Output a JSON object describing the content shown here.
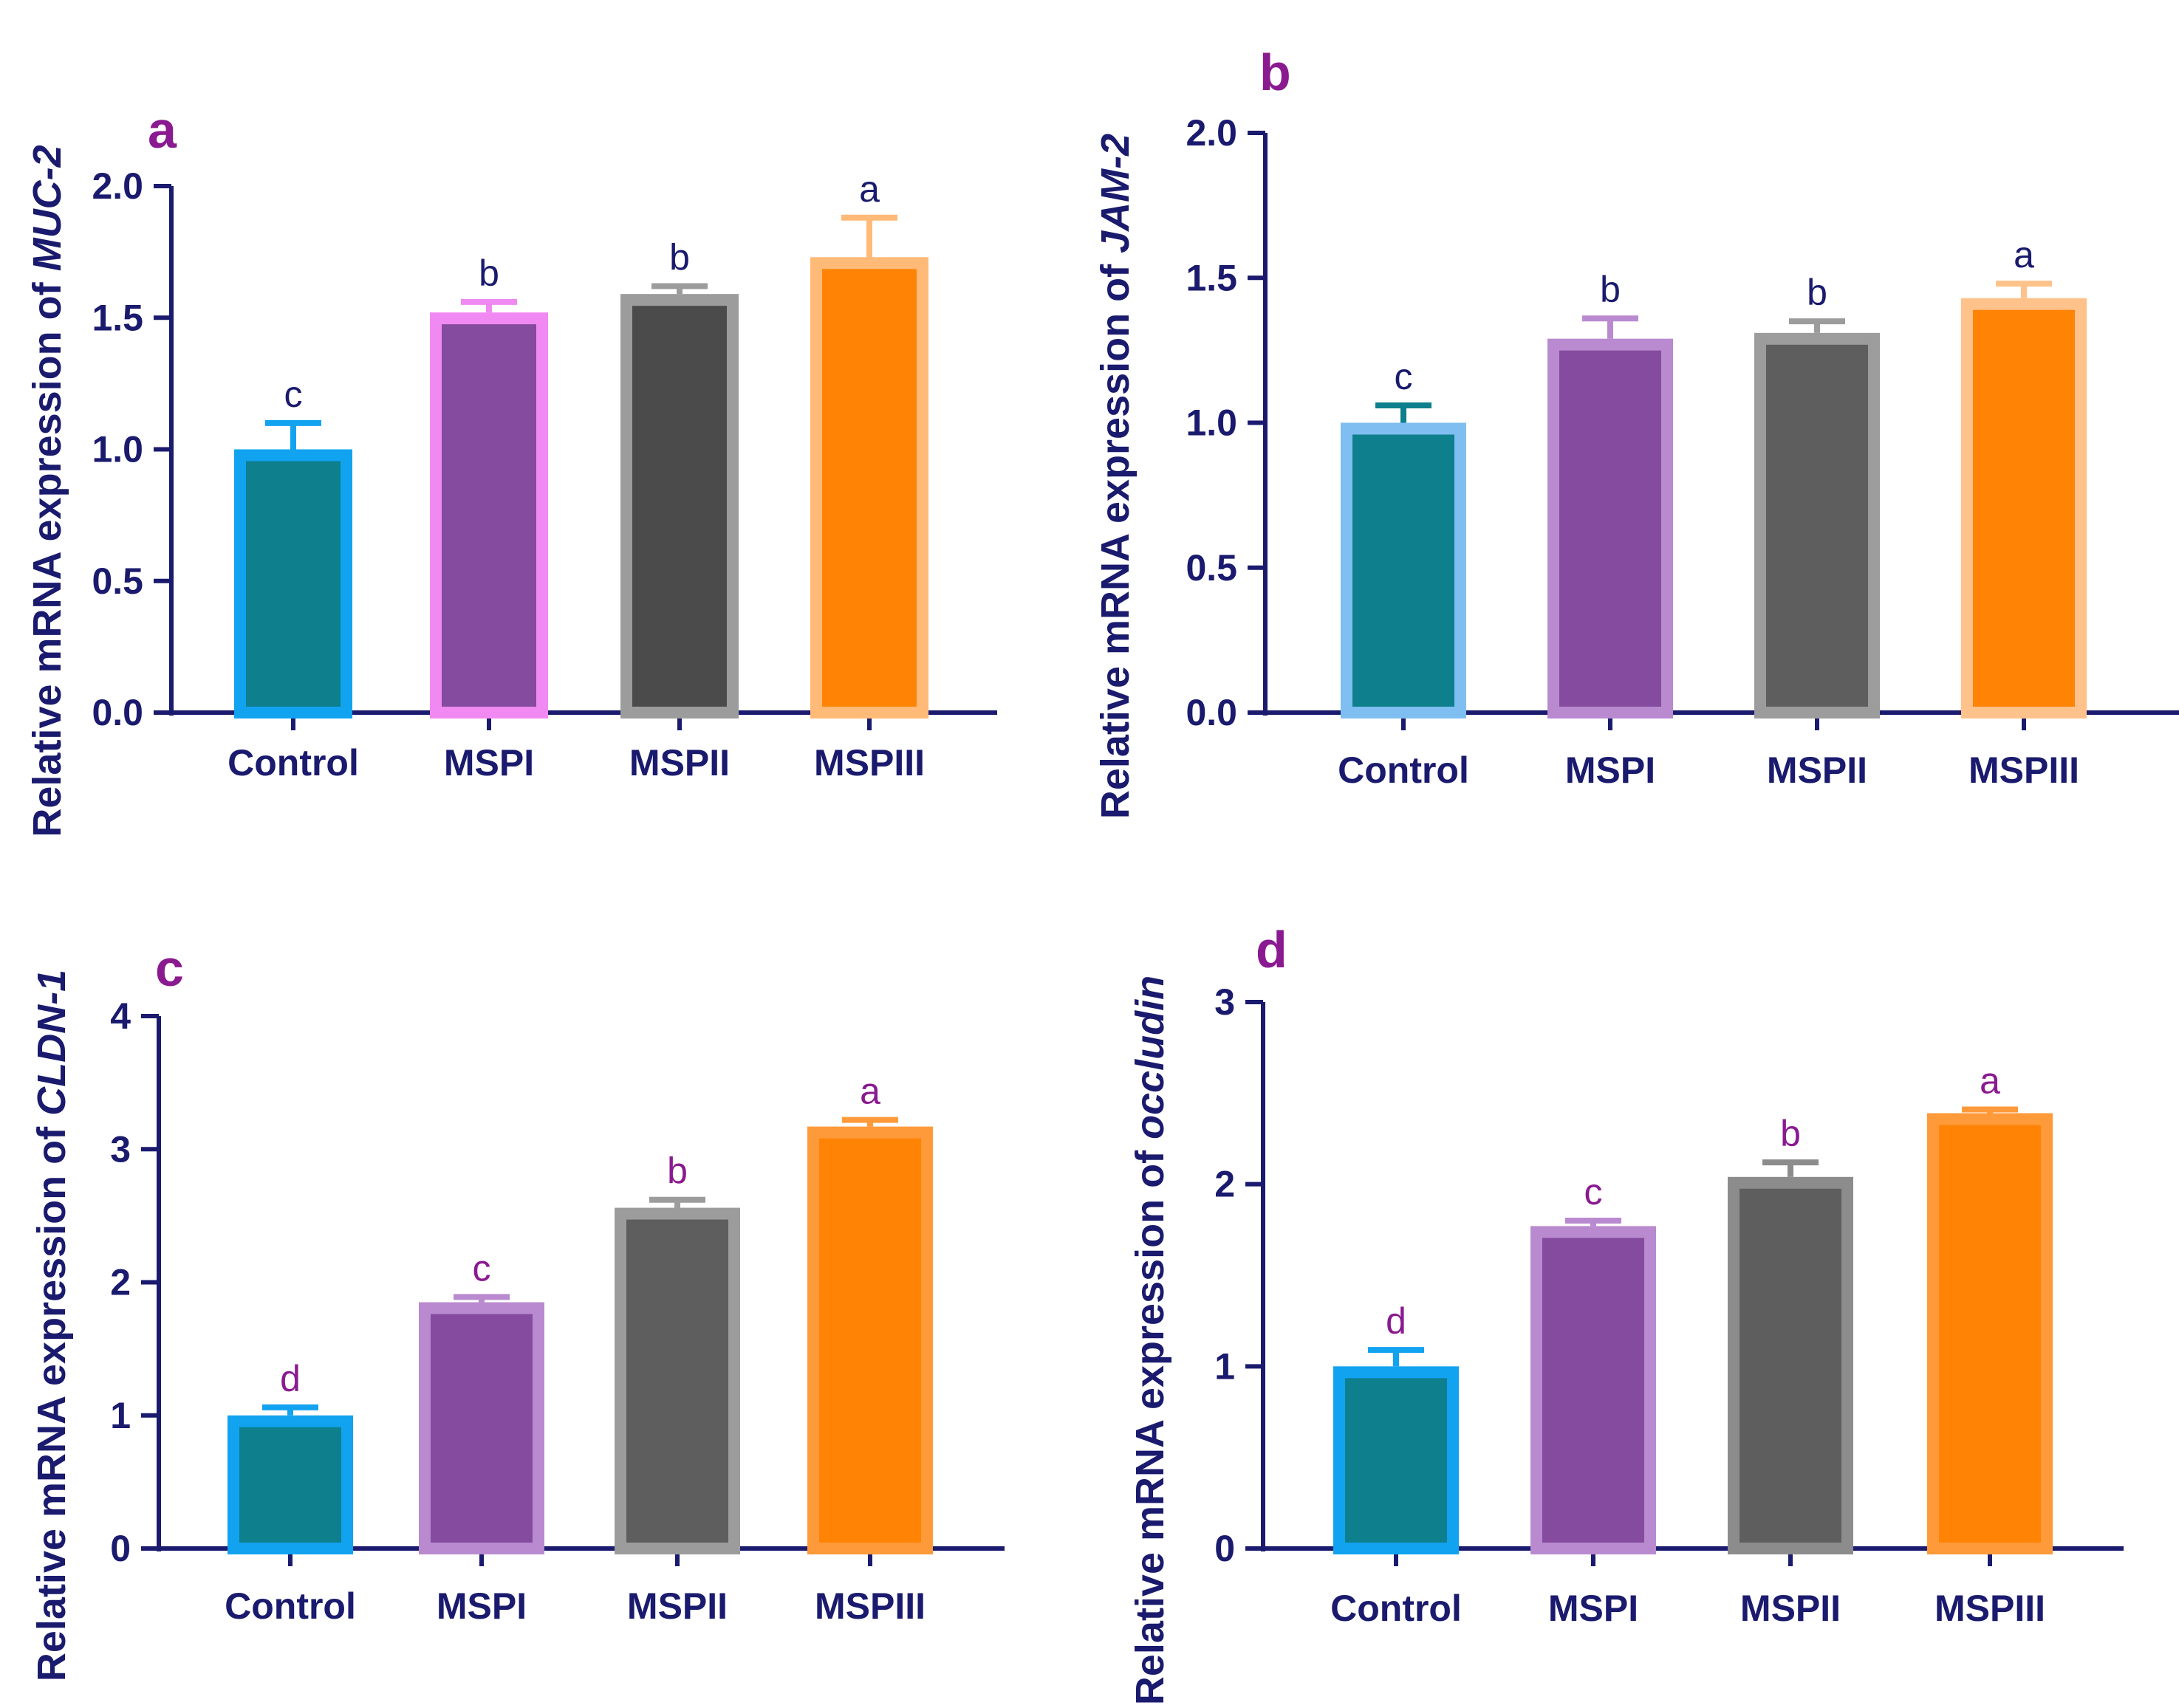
{
  "chart_data": [
    {
      "type": "bar",
      "panel": "a",
      "categories": [
        "Control",
        "MSPI",
        "MSPII",
        "MSPIII"
      ],
      "values": [
        1.0,
        1.52,
        1.59,
        1.73
      ],
      "errors": [
        0.1,
        0.04,
        0.03,
        0.15
      ],
      "significance": [
        "c",
        "b",
        "b",
        "a"
      ],
      "ylabel_prefix": "Relative mRNA expression of ",
      "ylabel_gene": "MUC-2",
      "ylim": [
        0,
        2.0
      ],
      "yticks": [
        "0.0",
        "0.5",
        "1.0",
        "1.5",
        "2.0"
      ],
      "ytick_values": [
        0,
        0.5,
        1.0,
        1.5,
        2.0
      ],
      "fill_colors": [
        "#0d7f8d",
        "#844b9e",
        "#4b4b4b",
        "#ff8405"
      ],
      "edge_colors": [
        "#12a3f0",
        "#f08af2",
        "#9c9c9c",
        "#ffba78"
      ],
      "error_colors": [
        "#12a3f0",
        "#f08af2",
        "#9c9c9c",
        "#ffba78"
      ],
      "sig_color": "#1a1a6e"
    },
    {
      "type": "bar",
      "panel": "b",
      "categories": [
        "Control",
        "MSPI",
        "MSPII",
        "MSPIII"
      ],
      "values": [
        1.0,
        1.29,
        1.31,
        1.43
      ],
      "errors": [
        0.06,
        0.07,
        0.04,
        0.05
      ],
      "significance": [
        "c",
        "b",
        "b",
        "a"
      ],
      "ylabel_prefix": "Relative mRNA expression of ",
      "ylabel_gene": "JAM-2",
      "ylim": [
        0,
        2.0
      ],
      "yticks": [
        "0.0",
        "0.5",
        "1.0",
        "1.5",
        "2.0"
      ],
      "ytick_values": [
        0,
        0.5,
        1.0,
        1.5,
        2.0
      ],
      "fill_colors": [
        "#0d7f8d",
        "#844b9e",
        "#5e5e5e",
        "#ff8405"
      ],
      "edge_colors": [
        "#7fbef0",
        "#b98ad0",
        "#9c9c9c",
        "#ffc28a"
      ],
      "error_colors": [
        "#0d7f8d",
        "#b98ad0",
        "#9c9c9c",
        "#ffc28a"
      ],
      "sig_color": "#1a1a6e"
    },
    {
      "type": "bar",
      "panel": "c",
      "categories": [
        "Control",
        "MSPI",
        "MSPII",
        "MSPIII"
      ],
      "values": [
        1.0,
        1.85,
        2.56,
        3.17
      ],
      "errors": [
        0.06,
        0.04,
        0.06,
        0.05
      ],
      "significance": [
        "d",
        "c",
        "b",
        "a"
      ],
      "ylabel_prefix": "Relative mRNA expression of ",
      "ylabel_gene": "CLDN-1",
      "ylim": [
        0,
        4
      ],
      "yticks": [
        "0",
        "1",
        "2",
        "3",
        "4"
      ],
      "ytick_values": [
        0,
        1,
        2,
        3,
        4
      ],
      "fill_colors": [
        "#0d7f8d",
        "#844b9e",
        "#5e5e5e",
        "#ff8405"
      ],
      "edge_colors": [
        "#12a3f0",
        "#b98ad0",
        "#9c9c9c",
        "#ff9a3a"
      ],
      "error_colors": [
        "#12a3f0",
        "#b98ad0",
        "#9c9c9c",
        "#ff9a3a"
      ],
      "sig_color": "#8a1a90"
    },
    {
      "type": "bar",
      "panel": "d",
      "categories": [
        "Control",
        "MSPI",
        "MSPII",
        "MSPIII"
      ],
      "values": [
        1.0,
        1.77,
        2.04,
        2.39
      ],
      "errors": [
        0.09,
        0.03,
        0.08,
        0.02
      ],
      "significance": [
        "d",
        "c",
        "b",
        "a"
      ],
      "ylabel_prefix": "Relative mRNA expression of ",
      "ylabel_gene": "occludin",
      "ylim": [
        0,
        3
      ],
      "yticks": [
        "0",
        "1",
        "2",
        "3"
      ],
      "ytick_values": [
        0,
        1,
        2,
        3
      ],
      "fill_colors": [
        "#0d7f8d",
        "#844b9e",
        "#5e5e5e",
        "#ff8405"
      ],
      "edge_colors": [
        "#12a3f0",
        "#b98ad0",
        "#8c8c8c",
        "#ff9a3a"
      ],
      "error_colors": [
        "#12a3f0",
        "#b98ad0",
        "#8c8c8c",
        "#ff9a3a"
      ],
      "sig_color": "#8a1a90"
    }
  ],
  "axis_color": "#1a1a6e"
}
